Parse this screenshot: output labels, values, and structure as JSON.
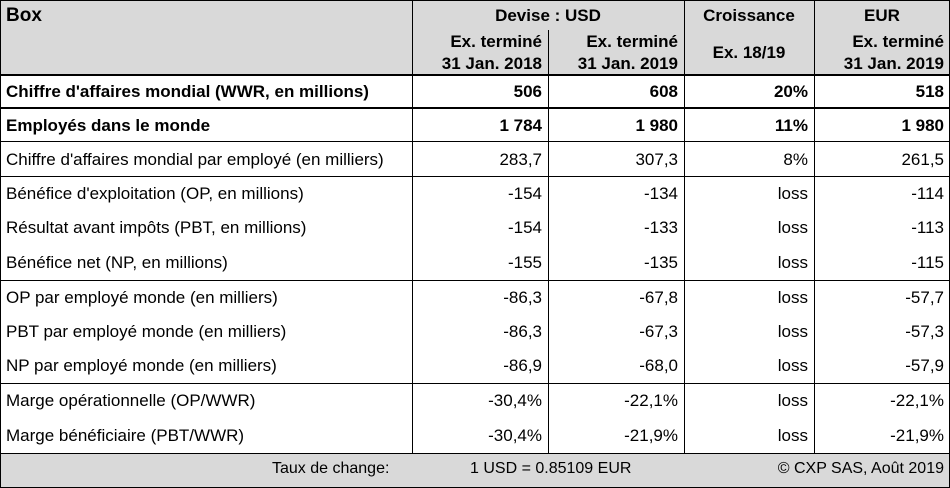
{
  "header": {
    "box_label": "Box",
    "devise_label": "Devise : USD",
    "croissance_label": "Croissance",
    "eur_label": "EUR",
    "col1_line1": "Ex. terminé",
    "col1_line2": "31 Jan. 2018",
    "col2_line1": "Ex. terminé",
    "col2_line2": "31 Jan. 2019",
    "growth_sub": "Ex. 18/19",
    "col4_line1": "Ex. terminé",
    "col4_line2": "31 Jan. 2019"
  },
  "rows": [
    {
      "label": "Chiffre d'affaires mondial (WWR, en millions)",
      "v2018": "506",
      "v2019": "608",
      "growth": "20%",
      "eur": "518"
    },
    {
      "label": "Employés dans le monde",
      "v2018": "1 784",
      "v2019": "1 980",
      "growth": "11%",
      "eur": "1 980"
    },
    {
      "label": "Chiffre d'affaires mondial par employé (en milliers)",
      "v2018": "283,7",
      "v2019": "307,3",
      "growth": "8%",
      "eur": "261,5"
    },
    {
      "label": "Bénéfice d'exploitation (OP, en millions)",
      "v2018": "-154",
      "v2019": "-134",
      "growth": "loss",
      "eur": "-114"
    },
    {
      "label": "Résultat avant impôts (PBT, en millions)",
      "v2018": "-154",
      "v2019": "-133",
      "growth": "loss",
      "eur": "-113"
    },
    {
      "label": "Bénéfice net (NP, en millions)",
      "v2018": "-155",
      "v2019": "-135",
      "growth": "loss",
      "eur": "-115"
    },
    {
      "label": "OP par employé monde (en milliers)",
      "v2018": "-86,3",
      "v2019": "-67,8",
      "growth": "loss",
      "eur": "-57,7"
    },
    {
      "label": "PBT par employé monde (en milliers)",
      "v2018": "-86,3",
      "v2019": "-67,3",
      "growth": "loss",
      "eur": "-57,3"
    },
    {
      "label": "NP par employé monde (en milliers)",
      "v2018": "-86,9",
      "v2019": "-68,0",
      "growth": "loss",
      "eur": "-57,9"
    },
    {
      "label": "Marge opérationnelle (OP/WWR)",
      "v2018": "-30,4%",
      "v2019": "-22,1%",
      "growth": "loss",
      "eur": "-22,1%"
    },
    {
      "label": "Marge bénéficiaire (PBT/WWR)",
      "v2018": "-30,4%",
      "v2019": "-21,9%",
      "growth": "loss",
      "eur": "-21,9%"
    }
  ],
  "footer": {
    "rate_label": "Taux de change:",
    "rate_value": "1 USD =  0.85109 EUR",
    "copyright": "© CXP SAS, Août 2019"
  }
}
